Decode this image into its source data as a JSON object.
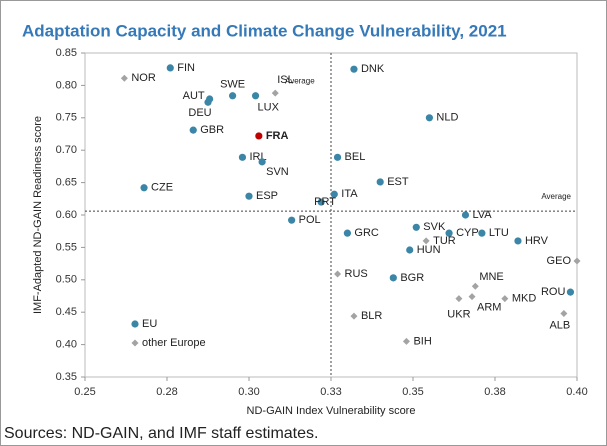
{
  "chart_data": {
    "type": "scatter",
    "title": "Adaptation Capacity and Climate Change Vulnerability, 2021",
    "xlabel": "ND-GAIN Index Vulnerability score",
    "ylabel": "IMF-Adapted ND-GAIN Readiness score",
    "source": "Sources: ND-GAIN, and IMF staff estimates.",
    "xlim": [
      0.25,
      0.4
    ],
    "ylim": [
      0.35,
      0.85
    ],
    "xticks": [
      0.25,
      {
        "value": 0.275,
        "label": "0.28"
      },
      {
        "value": 0.3,
        "label": "0.30"
      },
      {
        "value": 0.325,
        "label": "0.33"
      },
      0.35,
      {
        "value": 0.375,
        "label": "0.38"
      },
      {
        "value": 0.4,
        "label": "0.40"
      }
    ],
    "yticks": [
      0.35,
      {
        "value": 0.4,
        "label": "0.40"
      },
      0.45,
      {
        "value": 0.5,
        "label": "0.50"
      },
      0.55,
      {
        "value": 0.6,
        "label": "0.60"
      },
      0.65,
      {
        "value": 0.7,
        "label": "0.70"
      },
      0.75,
      {
        "value": 0.8,
        "label": "0.80"
      },
      0.85
    ],
    "average_x": 0.325,
    "average_y": 0.606,
    "average_label": "Average",
    "legend": "lower left",
    "series": [
      {
        "name": "EU",
        "color": "#3b86a6",
        "marker": "circle",
        "highlight": "FRA",
        "highlight_color": "#c00000",
        "labels": [
          "FIN",
          "SWE",
          "AUT",
          "DEU",
          "LUX",
          "DNK",
          "GBR",
          "FRA",
          "NLD",
          "IRL",
          "BEL",
          "SVN",
          "CZE",
          "EST",
          "ESP",
          "ITA",
          "PRT",
          "POL",
          "LVA",
          "SVK",
          "CYP",
          "LTU",
          "GRC",
          "HRV",
          "HUN",
          "BGR",
          "ROU"
        ],
        "x": [
          0.276,
          0.295,
          0.288,
          0.2875,
          0.302,
          0.332,
          0.283,
          0.303,
          0.355,
          0.298,
          0.327,
          0.304,
          0.268,
          0.34,
          0.3,
          0.326,
          0.322,
          0.313,
          0.366,
          0.351,
          0.361,
          0.371,
          0.33,
          0.382,
          0.349,
          0.344,
          0.398
        ],
        "values": [
          0.827,
          0.784,
          0.779,
          0.774,
          0.784,
          0.825,
          0.731,
          0.722,
          0.75,
          0.689,
          0.689,
          0.682,
          0.642,
          0.651,
          0.629,
          0.632,
          0.62,
          0.592,
          0.6,
          0.581,
          0.572,
          0.572,
          0.572,
          0.56,
          0.546,
          0.503,
          0.481
        ]
      },
      {
        "name": "other Europe",
        "color": "#a3a3a3",
        "marker": "diamond",
        "labels": [
          "NOR",
          "ISL",
          "TUR",
          "GEO",
          "RUS",
          "MNE",
          "UKR",
          "ARM",
          "MKD",
          "ALB",
          "BLR",
          "BIH"
        ],
        "x": [
          0.262,
          0.308,
          0.354,
          0.4,
          0.327,
          0.369,
          0.364,
          0.368,
          0.378,
          0.396,
          0.332,
          0.348
        ],
        "values": [
          0.811,
          0.788,
          0.56,
          0.529,
          0.509,
          0.49,
          0.471,
          0.474,
          0.471,
          0.448,
          0.444,
          0.405
        ]
      }
    ]
  }
}
